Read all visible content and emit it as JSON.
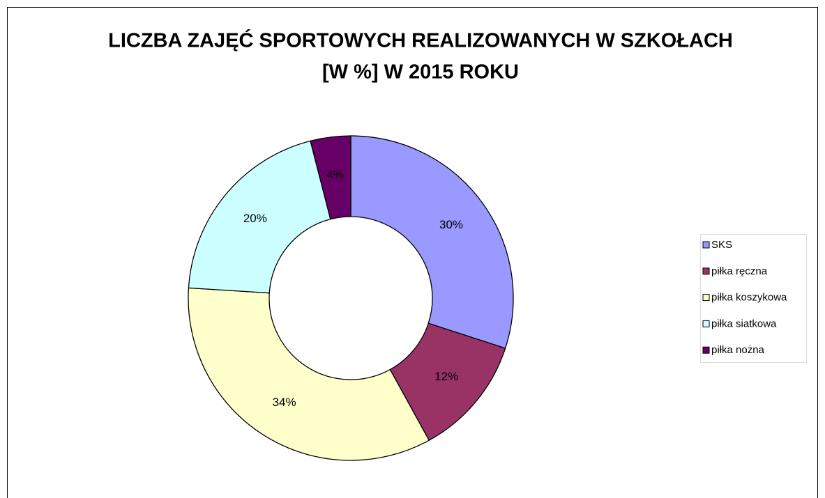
{
  "chart_data": {
    "type": "donut",
    "title": [
      "LICZBA ZAJĘĆ SPORTOWYCH REALIZOWANYCH W SZKOŁACH",
      "[W %] W 2015 ROKU"
    ],
    "categories": [
      "SKS",
      "piłka ręczna",
      "piłka koszykowa",
      "piłka siatkowa",
      "piłka nożna"
    ],
    "values": [
      30,
      12,
      34,
      20,
      4
    ],
    "value_labels": [
      "30%",
      "12%",
      "34%",
      "20%",
      "4%"
    ],
    "colors": [
      "#9999ff",
      "#993366",
      "#ffffcc",
      "#ccffff",
      "#660066"
    ],
    "legend": "right"
  }
}
